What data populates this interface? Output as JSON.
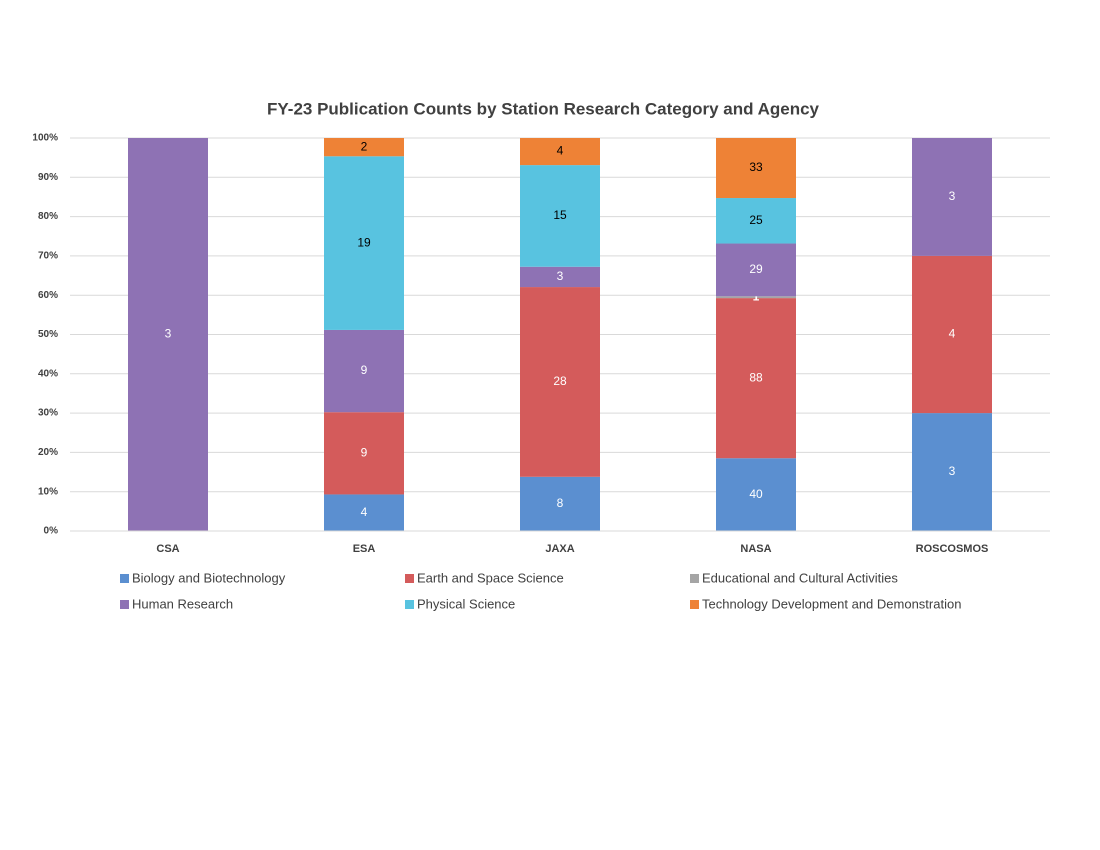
{
  "chart_data": {
    "type": "stacked_percent_bar",
    "title": "FY-23 Publication Counts by Station Research Category and Agency",
    "categories": [
      "CSA",
      "ESA",
      "JAXA",
      "NASA",
      "ROSCOSMOS"
    ],
    "series": [
      {
        "name": "Biology and Biotechnology",
        "color": "#5b8fd0",
        "values": [
          null,
          4,
          8,
          40,
          3
        ]
      },
      {
        "name": "Earth and Space Science",
        "color": "#d45b5b",
        "values": [
          null,
          9,
          28,
          88,
          4
        ]
      },
      {
        "name": "Educational and Cultural Activities",
        "color": "#a5a5a5",
        "values": [
          null,
          null,
          null,
          1,
          null
        ]
      },
      {
        "name": "Human Research",
        "color": "#8e72b4",
        "values": [
          3,
          9,
          3,
          29,
          3
        ]
      },
      {
        "name": "Physical Science",
        "color": "#58c3e0",
        "values": [
          null,
          19,
          15,
          25,
          null
        ]
      },
      {
        "name": "Technology Development and Demonstration",
        "color": "#ee8236",
        "values": [
          null,
          2,
          4,
          33,
          null
        ]
      }
    ],
    "ylim": [
      0,
      100
    ],
    "yticks": [
      {
        "value": 0,
        "label": "0%"
      },
      {
        "value": 10,
        "label": "10%"
      },
      {
        "value": 20,
        "label": "20%"
      },
      {
        "value": 30,
        "label": "30%"
      },
      {
        "value": 40,
        "label": "40%"
      },
      {
        "value": 50,
        "label": "50%"
      },
      {
        "value": 60,
        "label": "60%"
      },
      {
        "value": 70,
        "label": "70%"
      },
      {
        "value": 80,
        "label": "80%"
      },
      {
        "value": 90,
        "label": "90%"
      },
      {
        "value": 100,
        "label": "100%"
      }
    ],
    "grid": true,
    "legend": "bottom"
  }
}
